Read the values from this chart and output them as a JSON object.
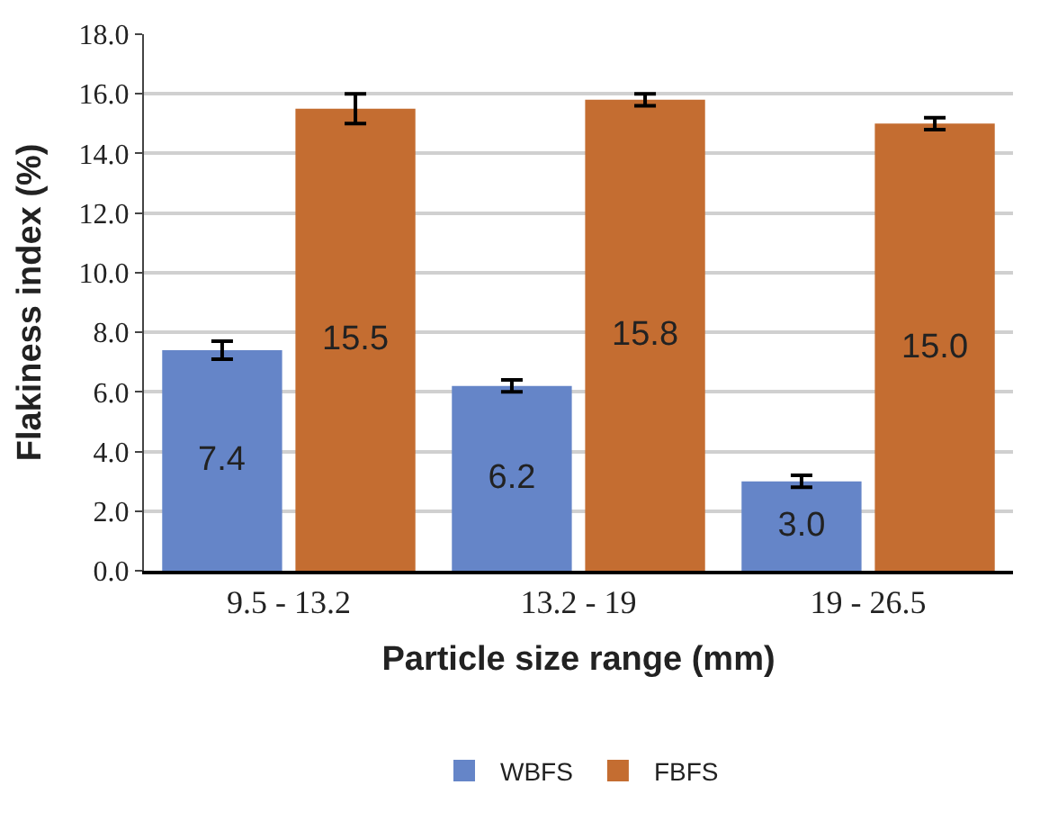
{
  "chart_data": {
    "type": "bar",
    "xlabel": "Particle size range (mm)",
    "ylabel": "Flakiness index (%)",
    "categories": [
      "9.5 - 13.2",
      "13.2 - 19",
      "19 - 26.5"
    ],
    "series": [
      {
        "name": "WBFS",
        "color": "#6585c8",
        "values": [
          7.4,
          6.2,
          3.0
        ],
        "value_labels": [
          "7.4",
          "6.2",
          "3.0"
        ],
        "errors": [
          0.3,
          0.2,
          0.2
        ]
      },
      {
        "name": "FBFS",
        "color": "#c46d31",
        "values": [
          15.5,
          15.8,
          15.0
        ],
        "value_labels": [
          "15.5",
          "15.8",
          "15.0"
        ],
        "errors": [
          0.5,
          0.2,
          0.2
        ]
      }
    ],
    "ylim": [
      0,
      18
    ],
    "yticks": [
      {
        "value": 0,
        "label": "0.0"
      },
      {
        "value": 2,
        "label": "2.0"
      },
      {
        "value": 4,
        "label": "4.0"
      },
      {
        "value": 6,
        "label": "6.0"
      },
      {
        "value": 8,
        "label": "8.0"
      },
      {
        "value": 10,
        "label": "10.0"
      },
      {
        "value": 12,
        "label": "12.0"
      },
      {
        "value": 14,
        "label": "14.0"
      },
      {
        "value": 16,
        "label": "16.0"
      },
      {
        "value": 18,
        "label": "18.0"
      }
    ],
    "grid": "y",
    "legend": "bottom"
  }
}
